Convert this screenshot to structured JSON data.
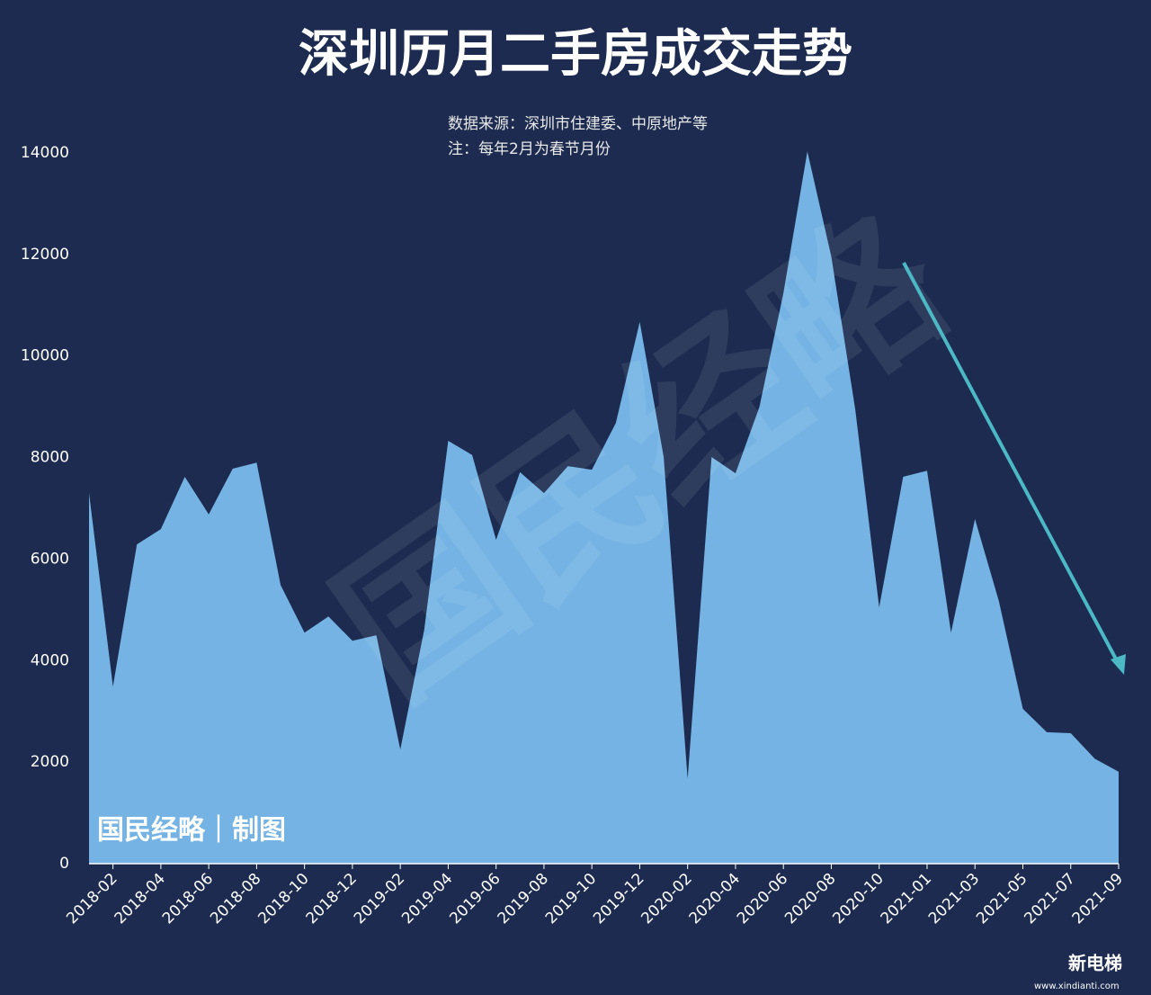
{
  "chart_data": {
    "type": "area",
    "title": "深圳历月二手房成交走势",
    "subtitle": [
      "数据来源：深圳市住建委、中原地产等",
      "注：每年2月为春节月份"
    ],
    "watermark": "国民经略",
    "credit": "国民经略｜制图",
    "logo": "新电梯",
    "logo_url": "www.xindianti.com",
    "color": "#74b3e3",
    "categories": [
      null,
      "2018-02",
      null,
      "2018-04",
      null,
      "2018-06",
      null,
      "2018-08",
      null,
      "2018-10",
      null,
      "2018-12",
      null,
      "2019-02",
      null,
      "2019-04",
      null,
      "2019-06",
      null,
      "2019-08",
      null,
      "2019-10",
      null,
      "2019-12",
      null,
      "2020-02",
      null,
      "2020-04",
      null,
      "2020-06",
      null,
      "2020-08",
      null,
      "2020-10",
      null,
      "2021-01",
      null,
      "2021-03",
      null,
      "2021-05",
      null,
      "2021-07",
      null,
      "2021-09"
    ],
    "values": [
      7300,
      3490,
      6290,
      6590,
      7620,
      6880,
      7780,
      7900,
      5490,
      4550,
      4870,
      4390,
      4500,
      2250,
      4610,
      8330,
      8050,
      6380,
      7710,
      7300,
      7830,
      7760,
      8680,
      10670,
      8010,
      1670,
      8010,
      7690,
      9000,
      11240,
      14030,
      11960,
      8950,
      5050,
      7620,
      7740,
      4550,
      6790,
      5170,
      3050,
      2590,
      2570,
      2070,
      1810
    ],
    "ylim": [
      0,
      14000
    ],
    "yticks": [
      0,
      2000,
      4000,
      6000,
      8000,
      10000,
      12000,
      14000
    ],
    "grid": false
  }
}
